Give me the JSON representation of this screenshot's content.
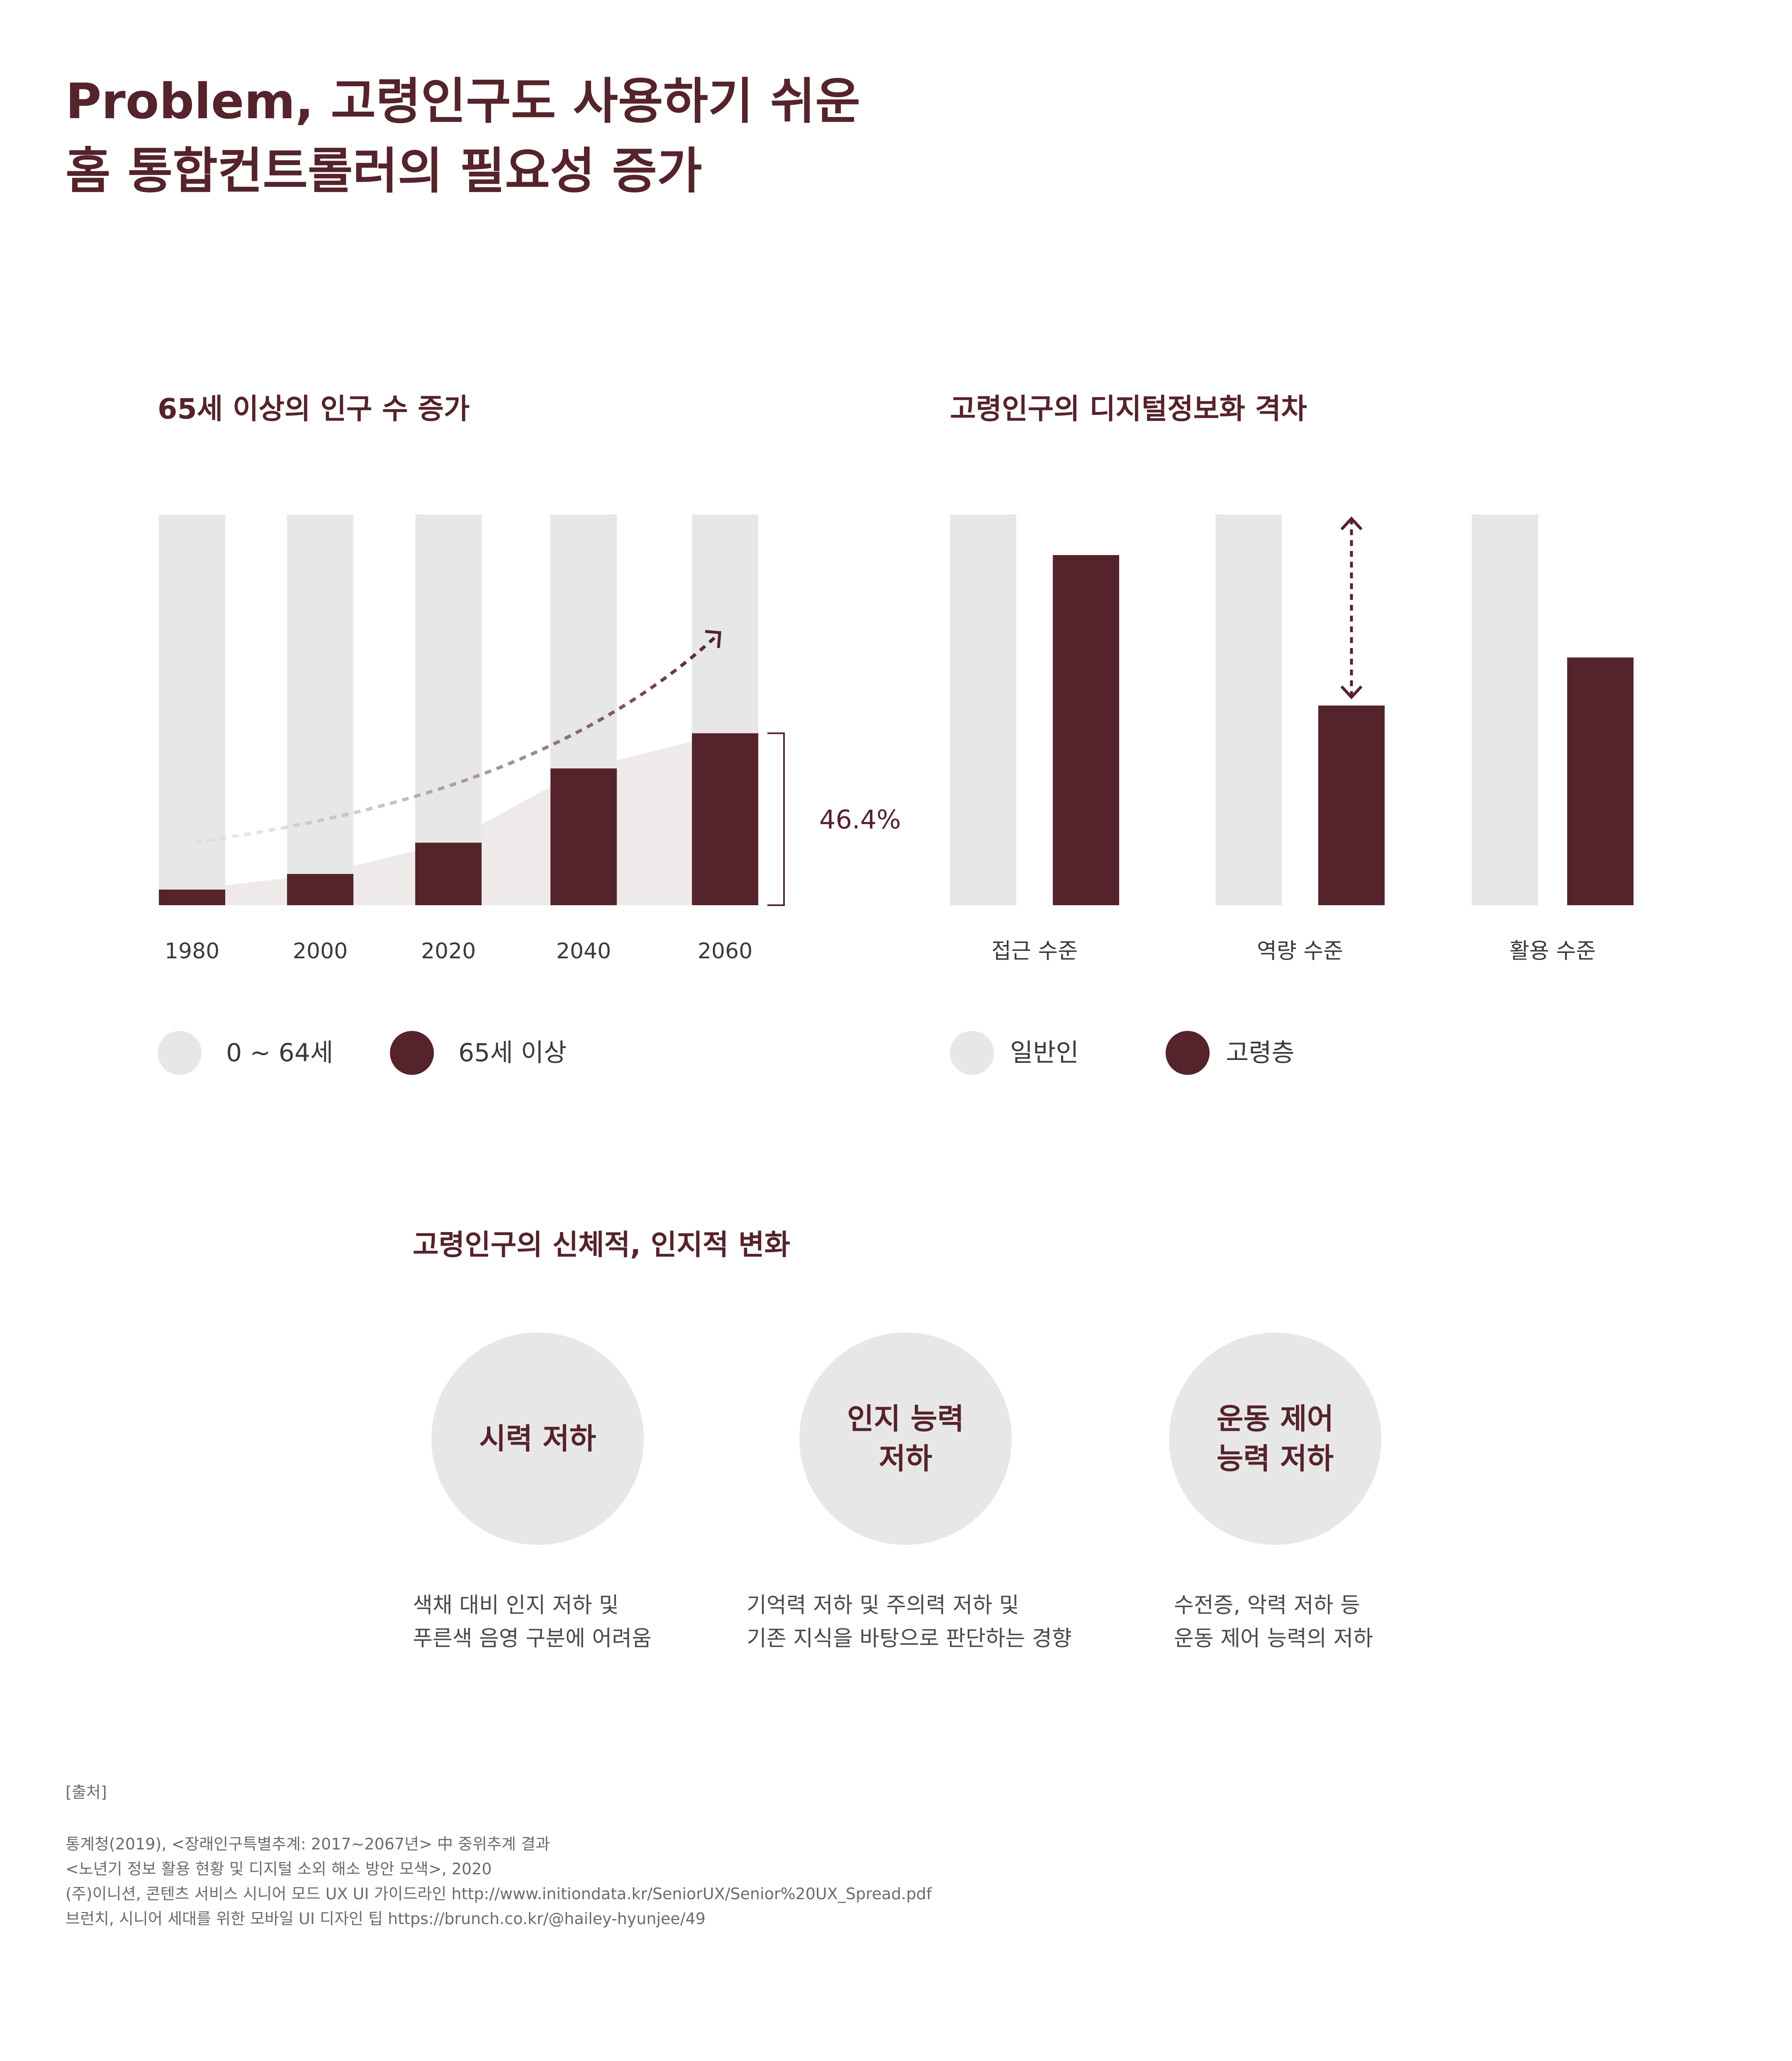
{
  "title": {
    "line1": "Problem, 고령인구도 사용하기 쉬운",
    "line2": "홈 통합컨트롤러의 필요성 증가"
  },
  "colors": {
    "primary": "#55232b",
    "light_bar": "#e8e7e7",
    "area": "#efeaea",
    "text": "#3a3a3a"
  },
  "chart_data": [
    {
      "type": "bar",
      "title": "65세 이상의 인구 수 증가",
      "categories": [
        "1980",
        "2000",
        "2020",
        "2040",
        "2060"
      ],
      "series": [
        {
          "name": "0 ~ 64세",
          "values": [
            96,
            92,
            84,
            65,
            56
          ]
        },
        {
          "name": "65세 이상",
          "values": [
            4,
            8,
            16,
            35,
            44
          ]
        }
      ],
      "stacked": true,
      "ylim": [
        0,
        100
      ],
      "annotation": "46.4%",
      "legend": "bottom"
    },
    {
      "type": "bar",
      "title": "고령인구의 디지털정보화 격차",
      "categories": [
        "접근 수준",
        "역량 수준",
        "활용 수준"
      ],
      "series": [
        {
          "name": "일반인",
          "values": [
            100,
            100,
            100
          ]
        },
        {
          "name": "고령층",
          "values": [
            89.6,
            51.1,
            63.4
          ]
        }
      ],
      "ylim": [
        0,
        100
      ],
      "legend": "bottom"
    }
  ],
  "section3": {
    "title": "고령인구의 신체적, 인지적 변화",
    "items": [
      {
        "label": "시력 저하",
        "desc": "색채 대비 인지 저하 및\n푸른색 음영 구분에 어려움"
      },
      {
        "label": "인지 능력\n저하",
        "desc": "기억력 저하 및 주의력 저하 및\n기존 지식을 바탕으로 판단하는 경향"
      },
      {
        "label": "운동 제어\n능력 저하",
        "desc": "수전증, 악력 저하 등\n운동 제어 능력의 저하"
      }
    ]
  },
  "sources": {
    "heading": "[출처]",
    "lines": [
      "통계청(2019), <장래인구특별추계: 2017~2067년> 中 중위추계 결과",
      "<노년기 정보 활용 현황 및 디지털 소외 해소 방안 모색>, 2020",
      "(주)이니션, 콘텐츠 서비스 시니어 모드 UX UI 가이드라인    http://www.initiondata.kr/SeniorUX/Senior%20UX_Spread.pdf",
      "브런치, 시니어 세대를 위한 모바일 UI 디자인 팁   https://brunch.co.kr/@hailey-hyunjee/49"
    ]
  }
}
